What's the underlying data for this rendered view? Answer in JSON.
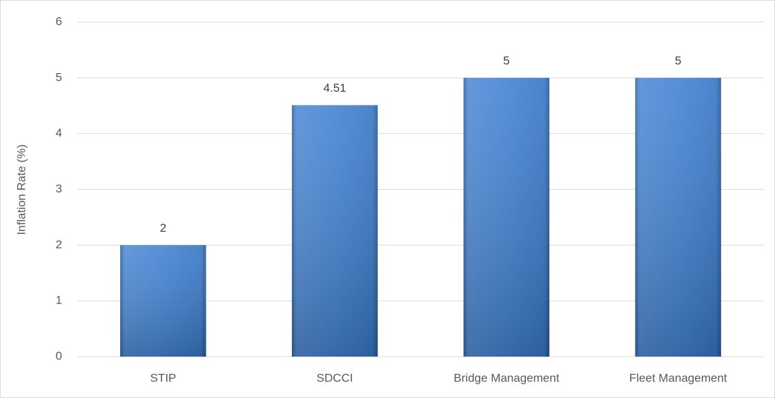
{
  "chart_data": {
    "type": "bar",
    "y_label": "Inflation Rate (%)",
    "categories": [
      "STIP",
      "SDCCI",
      "Bridge Management",
      "Fleet Management"
    ],
    "values": [
      2,
      4.51,
      5,
      5
    ],
    "color": "#3b7dd0",
    "ylim": [
      0,
      6
    ],
    "yticks": [
      0,
      1,
      2,
      3,
      4,
      5,
      6
    ],
    "grid": true,
    "data_labels": true
  }
}
